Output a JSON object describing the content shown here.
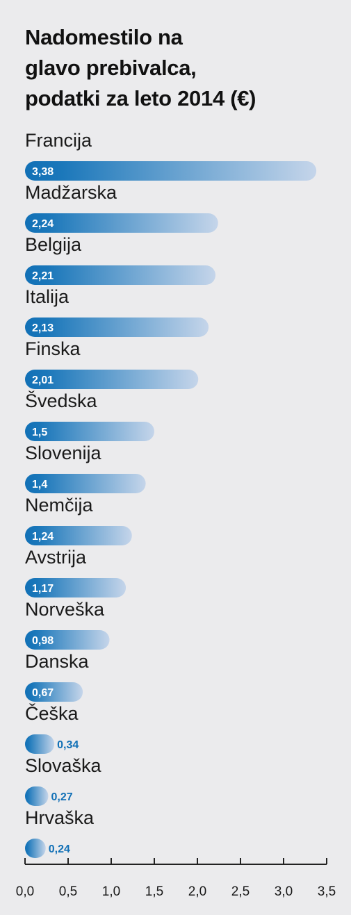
{
  "chart_data": {
    "type": "bar",
    "orientation": "horizontal",
    "title_lines": [
      "Nadomestilo na",
      "glavo prebivalca,",
      "podatki za leto 2014 (€)"
    ],
    "categories": [
      "Francija",
      "Madžarska",
      "Belgija",
      "Italija",
      "Finska",
      "Švedska",
      "Slovenija",
      "Nemčija",
      "Avstrija",
      "Norveška",
      "Danska",
      "Češka",
      "Slovaška",
      "Hrvaška"
    ],
    "values": [
      3.38,
      2.24,
      2.21,
      2.13,
      2.01,
      1.5,
      1.4,
      1.24,
      1.17,
      0.98,
      0.67,
      0.34,
      0.27,
      0.24
    ],
    "value_labels": [
      "3,38",
      "2,24",
      "2,21",
      "2,13",
      "2,01",
      "1,5",
      "1,4",
      "1,24",
      "1,17",
      "0,98",
      "0,67",
      "0,34",
      "0,27",
      "0,24"
    ],
    "xlim": [
      0,
      3.5
    ],
    "x_ticks": [
      0,
      0.5,
      1,
      1.5,
      2,
      2.5,
      3,
      3.5
    ],
    "x_tick_labels": [
      "0,0",
      "0,5",
      "1,0",
      "1,5",
      "2,0",
      "2,5",
      "3,0",
      "3,5"
    ],
    "grid": false,
    "legend": "none",
    "colors": {
      "bar_start": "#1170b6",
      "bar_end": "#c5d5ea",
      "axis": "#222222",
      "value_outside": "#1170b6"
    }
  }
}
